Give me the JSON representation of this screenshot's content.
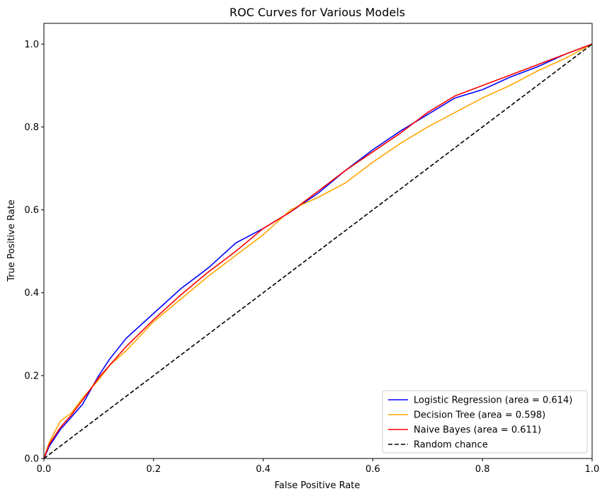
{
  "chart_data": {
    "type": "line",
    "title": "ROC Curves for Various Models",
    "xlabel": "False Positive Rate",
    "ylabel": "True Positive Rate",
    "xlim": [
      0.0,
      1.0
    ],
    "ylim": [
      0.0,
      1.05
    ],
    "xticks": [
      "0.0",
      "0.2",
      "0.4",
      "0.6",
      "0.8",
      "1.0"
    ],
    "yticks": [
      "0.0",
      "0.2",
      "0.4",
      "0.6",
      "0.8",
      "1.0"
    ],
    "grid": false,
    "legend_position": "lower-right",
    "series": [
      {
        "name": "Logistic Regression (area = 0.614)",
        "color": "#0000ff",
        "style": "solid",
        "x": [
          0.0,
          0.01,
          0.03,
          0.05,
          0.07,
          0.1,
          0.12,
          0.15,
          0.2,
          0.25,
          0.3,
          0.35,
          0.4,
          0.45,
          0.5,
          0.55,
          0.6,
          0.65,
          0.7,
          0.75,
          0.8,
          0.85,
          0.9,
          0.95,
          1.0
        ],
        "y": [
          0.0,
          0.03,
          0.07,
          0.1,
          0.13,
          0.2,
          0.24,
          0.29,
          0.35,
          0.41,
          0.46,
          0.52,
          0.555,
          0.595,
          0.64,
          0.695,
          0.745,
          0.79,
          0.83,
          0.87,
          0.89,
          0.92,
          0.945,
          0.975,
          1.0
        ]
      },
      {
        "name": "Decision Tree (area = 0.598)",
        "color": "#ffa500",
        "style": "solid",
        "x": [
          0.0,
          0.01,
          0.03,
          0.05,
          0.07,
          0.1,
          0.12,
          0.15,
          0.2,
          0.25,
          0.3,
          0.35,
          0.4,
          0.45,
          0.5,
          0.55,
          0.6,
          0.65,
          0.7,
          0.75,
          0.8,
          0.85,
          0.9,
          0.95,
          1.0
        ],
        "y": [
          0.0,
          0.04,
          0.09,
          0.11,
          0.145,
          0.19,
          0.225,
          0.26,
          0.33,
          0.385,
          0.44,
          0.49,
          0.54,
          0.6,
          0.63,
          0.665,
          0.715,
          0.76,
          0.8,
          0.835,
          0.87,
          0.9,
          0.935,
          0.965,
          1.0
        ]
      },
      {
        "name": "Naive Bayes (area = 0.611)",
        "color": "#ff0000",
        "style": "solid",
        "x": [
          0.0,
          0.01,
          0.03,
          0.05,
          0.07,
          0.1,
          0.12,
          0.15,
          0.2,
          0.25,
          0.3,
          0.35,
          0.4,
          0.45,
          0.5,
          0.55,
          0.6,
          0.65,
          0.7,
          0.75,
          0.8,
          0.85,
          0.9,
          0.95,
          1.0
        ],
        "y": [
          0.0,
          0.035,
          0.075,
          0.105,
          0.14,
          0.195,
          0.225,
          0.27,
          0.335,
          0.395,
          0.45,
          0.5,
          0.555,
          0.595,
          0.645,
          0.695,
          0.74,
          0.785,
          0.835,
          0.875,
          0.9,
          0.925,
          0.95,
          0.975,
          1.0
        ]
      },
      {
        "name": "Random chance",
        "color": "#000000",
        "style": "dashed",
        "x": [
          0.0,
          1.0
        ],
        "y": [
          0.0,
          1.0
        ]
      }
    ]
  }
}
